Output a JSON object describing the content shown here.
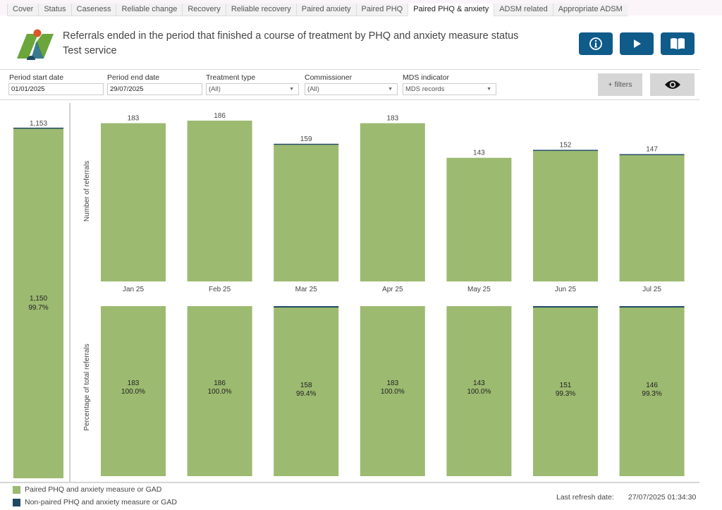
{
  "tabs": [
    {
      "label": "Cover",
      "active": false
    },
    {
      "label": "Status",
      "active": false
    },
    {
      "label": "Caseness",
      "active": false
    },
    {
      "label": "Reliable change",
      "active": false
    },
    {
      "label": "Recovery",
      "active": false
    },
    {
      "label": "Reliable recovery",
      "active": false
    },
    {
      "label": "Paired anxiety",
      "active": false
    },
    {
      "label": "Paired PHQ",
      "active": false
    },
    {
      "label": "Paired PHQ & anxiety",
      "active": true
    },
    {
      "label": "ADSM related",
      "active": false
    },
    {
      "label": "Appropriate ADSM",
      "active": false
    }
  ],
  "header": {
    "title": "Referrals ended in the period that finished a course of treatment by PHQ and anxiety measure status",
    "subtitle": "Test service",
    "buttons": [
      {
        "name": "info",
        "icon": "info-icon"
      },
      {
        "name": "play",
        "icon": "play-icon"
      },
      {
        "name": "guide",
        "icon": "book-icon"
      }
    ]
  },
  "filters": {
    "period_start": {
      "label": "Period start date",
      "value": "01/01/2025"
    },
    "period_end": {
      "label": "Period end date",
      "value": "29/07/2025"
    },
    "treatment_type": {
      "label": "Treatment type",
      "value": "(All)"
    },
    "commissioner": {
      "label": "Commissioner",
      "value": "(All)"
    },
    "mds_indicator": {
      "label": "MDS indicator",
      "value": "MDS records"
    },
    "more_filters_label": "+ filters",
    "view_icon": "eye-icon"
  },
  "colors": {
    "paired": "#9cba70",
    "non_paired": "#1f4a63",
    "header_button": "#0f5b8a"
  },
  "chart_data": {
    "type": "bar",
    "stacked": true,
    "categories": [
      "Jan 25",
      "Feb 25",
      "Mar 25",
      "Apr 25",
      "May 25",
      "Jun 25",
      "Jul 25"
    ],
    "series": [
      {
        "name": "Paired PHQ and anxiety measure or GAD",
        "values": [
          183,
          186,
          158,
          183,
          143,
          151,
          146
        ]
      },
      {
        "name": "Non-paired PHQ and anxiety measure or GAD",
        "values": [
          0,
          0,
          1,
          0,
          0,
          1,
          1
        ]
      }
    ],
    "totals": [
      183,
      186,
      159,
      183,
      143,
      152,
      147
    ],
    "total_labels": [
      "183",
      "186",
      "159",
      "183",
      "143",
      "152",
      "147"
    ],
    "percent_labels": [
      {
        "count": "183",
        "pct": "100.0%"
      },
      {
        "count": "186",
        "pct": "100.0%"
      },
      {
        "count": "158",
        "pct": "99.4%"
      },
      {
        "count": "183",
        "pct": "100.0%"
      },
      {
        "count": "143",
        "pct": "100.0%"
      },
      {
        "count": "151",
        "pct": "99.3%"
      },
      {
        "count": "146",
        "pct": "99.3%"
      }
    ],
    "ylabel_top": "Number of referrals",
    "ylabel_bottom": "Percentage of total referrals",
    "ylim": [
      0,
      186
    ],
    "summary": {
      "total": 1153,
      "total_label": "1,153",
      "paired": 1150,
      "paired_label": "1,150",
      "paired_pct": "99.7%",
      "non_paired": 3
    },
    "legend": [
      "Paired PHQ and anxiety measure or GAD",
      "Non-paired PHQ and anxiety measure or GAD"
    ],
    "legend_position": "bottom-left",
    "grid": false
  },
  "footer": {
    "refresh_label": "Last refresh date:",
    "refresh_value": "27/07/2025 01:34:30"
  }
}
